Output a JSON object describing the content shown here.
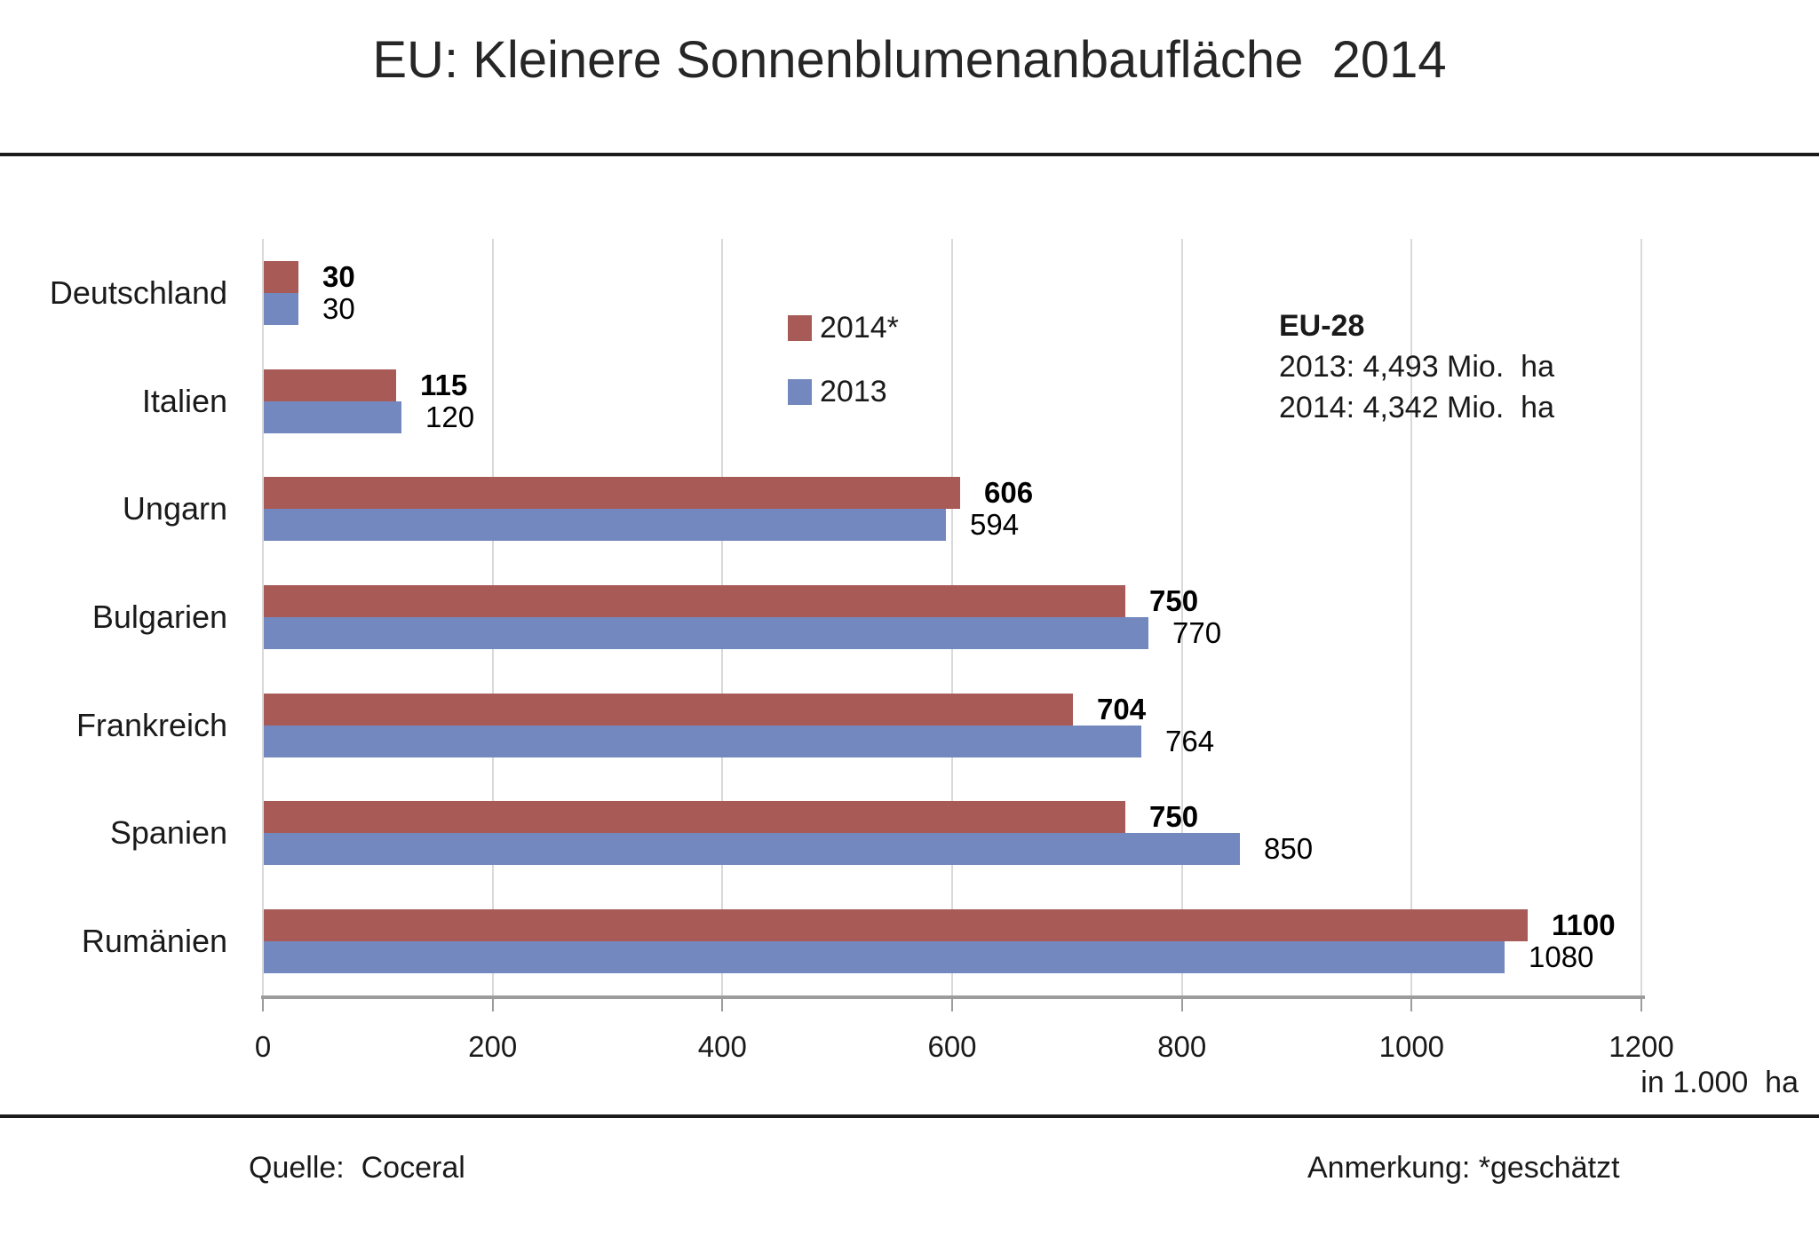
{
  "title": "EU: Kleinere Sonnenblumenanbaufläche  2014",
  "chart_data": {
    "type": "bar",
    "orientation": "horizontal",
    "title": "EU: Kleinere Sonnenblumenanbaufläche 2014",
    "categories": [
      "Deutschland",
      "Italien",
      "Ungarn",
      "Bulgarien",
      "Frankreich",
      "Spanien",
      "Rumänien"
    ],
    "series": [
      {
        "name": "2014*",
        "color": "#A85A56",
        "values": [
          30,
          115,
          606,
          750,
          704,
          750,
          1100
        ],
        "value_labels_bold": true
      },
      {
        "name": "2013",
        "color": "#7488C0",
        "values": [
          30,
          120,
          594,
          770,
          764,
          850,
          1080
        ],
        "value_labels_bold": false
      }
    ],
    "xlim": [
      0,
      1200
    ],
    "xticks": [
      0,
      200,
      400,
      600,
      800,
      1000,
      1200
    ],
    "x_unit_label": "in 1.000  ha",
    "grid": "vertical-gridlines",
    "gridline_color": "#d9d9d9",
    "axis_color": "#9c9c9c",
    "legend_position": "inside-top-center",
    "value_labels": "end-of-bar"
  },
  "legend": {
    "items": [
      {
        "label": "2014*",
        "color": "#A85A56"
      },
      {
        "label": "2013",
        "color": "#7488C0"
      }
    ]
  },
  "annotation": {
    "title": "EU-28",
    "line_2013": "2013: 4,493 Mio.  ha",
    "line_2014": "2014: 4,342 Mio.  ha"
  },
  "footer": {
    "source": "Quelle:  Coceral",
    "note": "Anmerkung: *geschätzt"
  }
}
